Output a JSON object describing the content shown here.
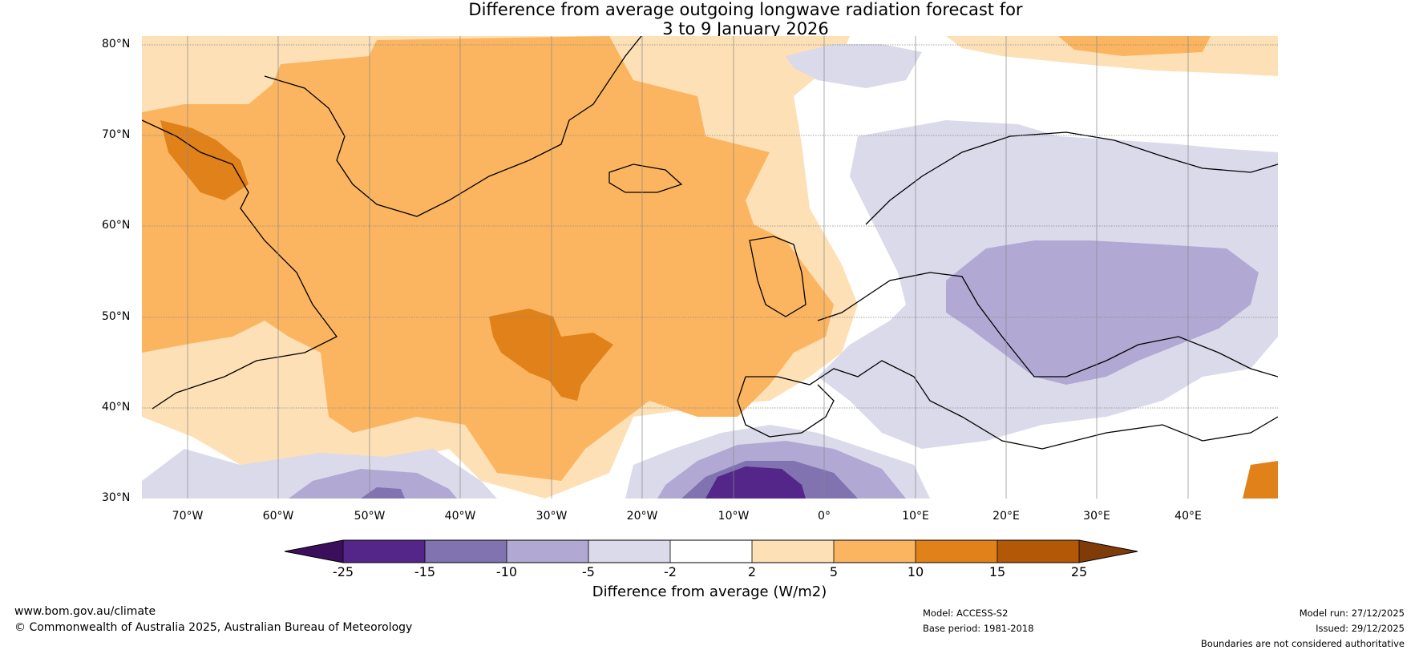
{
  "title": {
    "line1": "Difference from average outgoing longwave radiation forecast for",
    "line2": "3 to 9 January 2026"
  },
  "lat_labels": [
    "80°N",
    "70°N",
    "60°N",
    "50°N",
    "40°N",
    "30°N"
  ],
  "lon_labels": [
    "70°W",
    "60°W",
    "50°W",
    "40°W",
    "30°W",
    "20°W",
    "10°W",
    "0°",
    "10°E",
    "20°E",
    "30°E",
    "40°E"
  ],
  "colorbar": {
    "ticks": [
      "-25",
      "-15",
      "-10",
      "-5",
      "-2",
      "2",
      "5",
      "10",
      "15",
      "25"
    ],
    "colors": {
      "lt_-25": "#3b0f5c",
      "-25_-15": "#54268a",
      "-15_-10": "#8073b0",
      "-10_-5": "#b1a9d3",
      "-5_-2": "#dadaeb",
      "-2_2": "#ffffff",
      "2_5": "#fde0b5",
      "5_10": "#fbb561",
      "10_15": "#e08119",
      "15_25": "#b35807",
      "gt_25": "#7f3b08"
    },
    "label": "Difference from average (W/m2)"
  },
  "footer": {
    "website": "www.bom.gov.au/climate",
    "copyright": "© Commonwealth of Australia 2025, Australian Bureau of Meteorology",
    "model": "Model: ACCESS-S2",
    "base_period": "Base period: 1981-2018",
    "model_run": "Model run: 27/12/2025",
    "issued": "Issued: 29/12/2025",
    "disclaimer": "Boundaries are not considered authoritative"
  }
}
